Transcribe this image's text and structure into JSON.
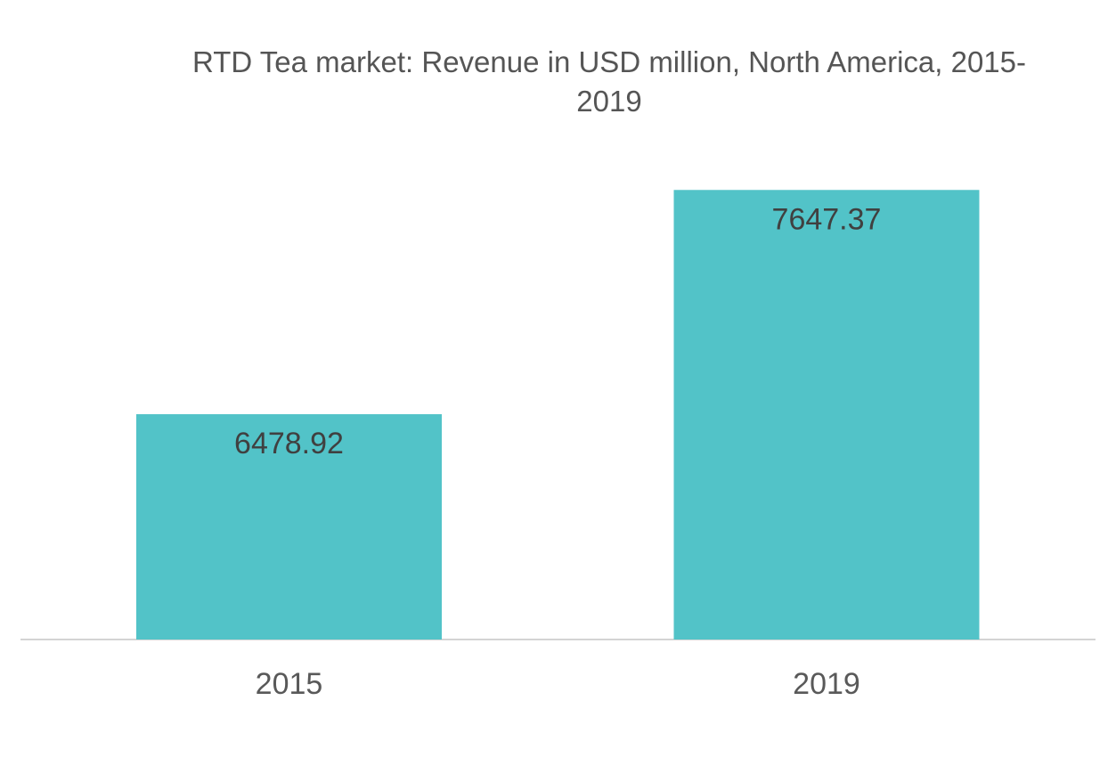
{
  "chart_data": {
    "type": "bar",
    "title": "RTD Tea market: Revenue in USD million, North America, 2015-2019",
    "categories": [
      "2015",
      "2019"
    ],
    "values": [
      6478.92,
      7647.37
    ],
    "data_labels": [
      "6478.92",
      "7647.37"
    ],
    "xlabel": "",
    "ylabel": "",
    "ylim": [
      5305,
      7760
    ],
    "grid": false,
    "legend": "none",
    "colors": {
      "bar": "#52C3C8",
      "axis": "#d4d4d4",
      "label": "#404040",
      "tick": "#595959",
      "title": "#555555"
    }
  }
}
